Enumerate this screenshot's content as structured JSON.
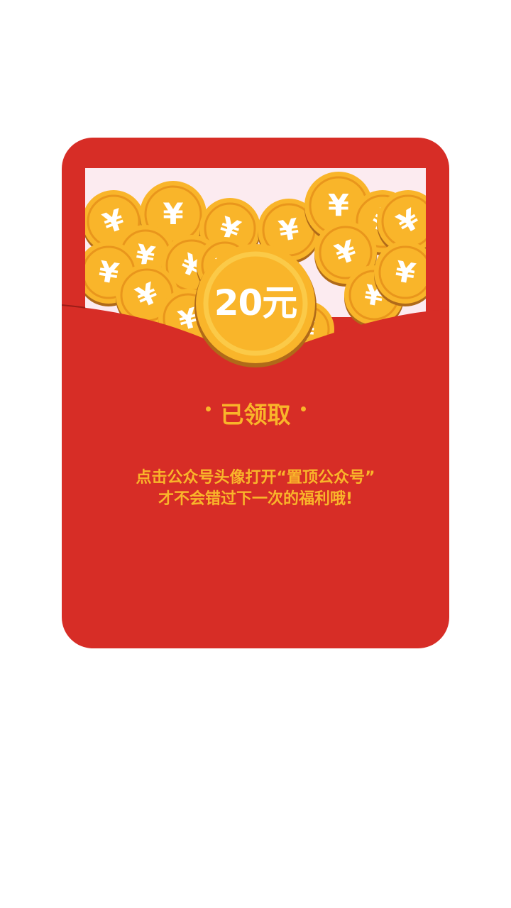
{
  "red_packet": {
    "amount": "20元",
    "status": "已领取",
    "hint_line1": "点击公众号头像打开“置顶公众号”",
    "hint_line2": "才不会错过下一次的福利哦!",
    "currency_symbol": "¥"
  },
  "colors": {
    "envelope_red": "#d72d26",
    "inner_card_pink": "#fcebf0",
    "coin_gold": "#f9b52a",
    "coin_rim": "#e9961c",
    "text_gold": "#f9b52a"
  }
}
